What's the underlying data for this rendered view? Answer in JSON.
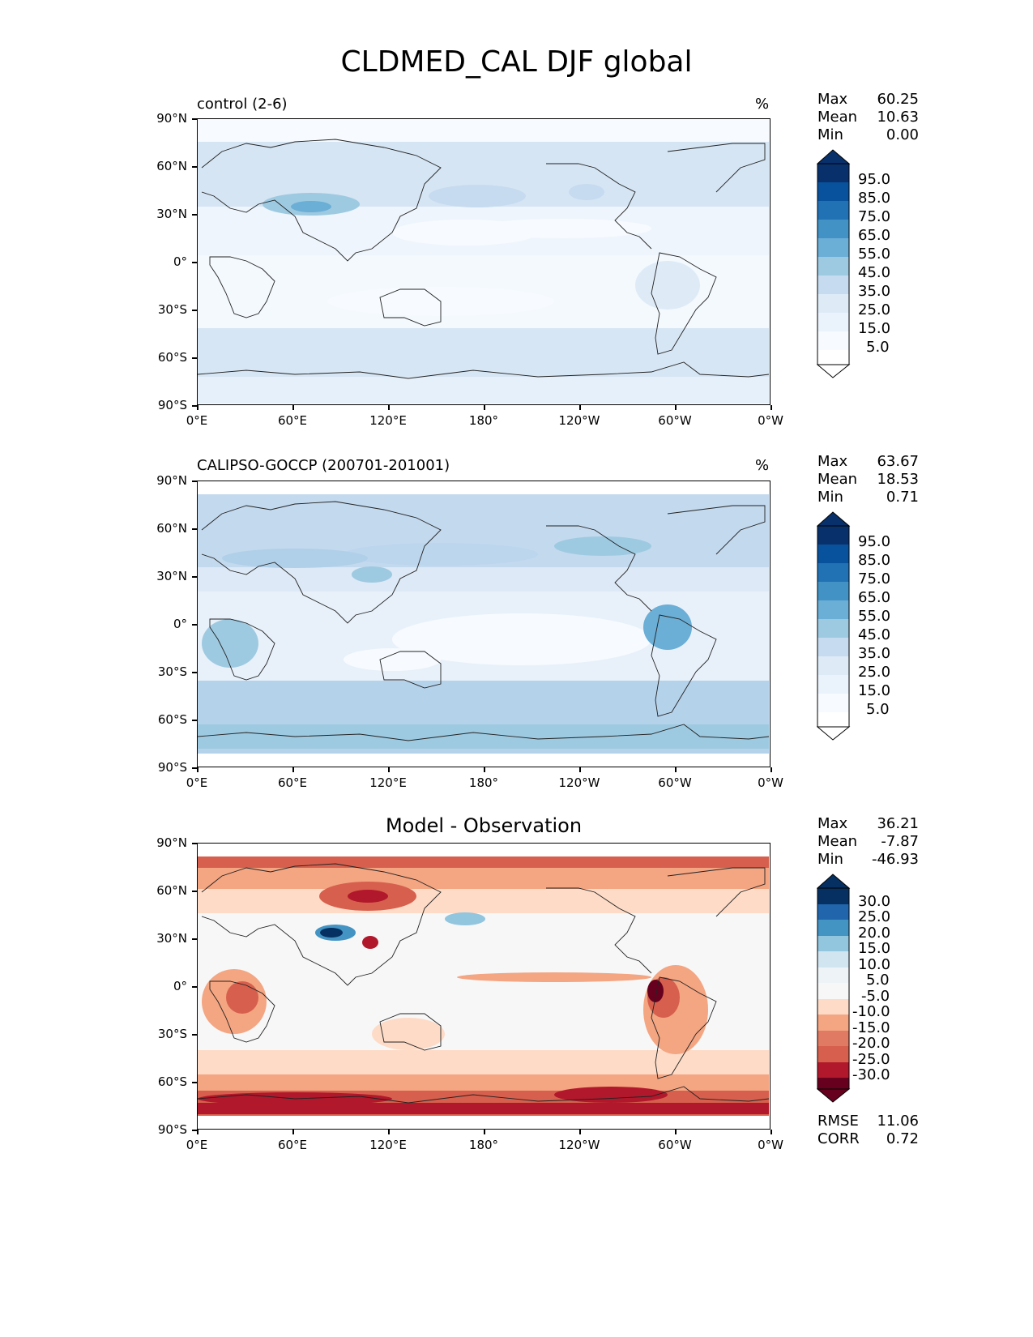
{
  "title": "CLDMED_CAL DJF global",
  "x_ticks": [
    "0°E",
    "60°E",
    "120°E",
    "180°",
    "120°W",
    "60°W",
    "0°W"
  ],
  "y_ticks": [
    "90°N",
    "60°N",
    "30°N",
    "0°",
    "30°S",
    "60°S",
    "90°S"
  ],
  "panels": [
    {
      "label": "control (2-6)",
      "unit": "%",
      "stats": {
        "max_label": "Max",
        "max": "60.25",
        "mean_label": "Mean",
        "mean": "10.63",
        "min_label": "Min",
        "min": "0.00"
      },
      "colorbar": [
        "95.0",
        "85.0",
        "75.0",
        "65.0",
        "55.0",
        "45.0",
        "35.0",
        "25.0",
        "15.0",
        "5.0"
      ]
    },
    {
      "label": "CALIPSO-GOCCP (200701-201001)",
      "unit": "%",
      "stats": {
        "max_label": "Max",
        "max": "63.67",
        "mean_label": "Mean",
        "mean": "18.53",
        "min_label": "Min",
        "min": "0.71"
      },
      "colorbar": [
        "95.0",
        "85.0",
        "75.0",
        "65.0",
        "55.0",
        "45.0",
        "35.0",
        "25.0",
        "15.0",
        "5.0"
      ]
    },
    {
      "title": "Model - Observation",
      "stats": {
        "max_label": "Max",
        "max": "36.21",
        "mean_label": "Mean",
        "mean": "-7.87",
        "min_label": "Min",
        "min": "-46.93"
      },
      "colorbar": [
        "30.0",
        "25.0",
        "20.0",
        "15.0",
        "10.0",
        "5.0",
        "-5.0",
        "-10.0",
        "-15.0",
        "-20.0",
        "-25.0",
        "-30.0"
      ],
      "metrics": {
        "rmse_label": "RMSE",
        "rmse": "11.06",
        "corr_label": "CORR",
        "corr": "0.72"
      }
    }
  ],
  "colors": {
    "blues": [
      "#f7fbff",
      "#deebf7",
      "#c6dbef",
      "#9ecae1",
      "#6baed6",
      "#4292c6",
      "#2171b5",
      "#08519c",
      "#08306b"
    ],
    "diverging_top": "#053061",
    "diverging_bottom": "#67001f"
  }
}
